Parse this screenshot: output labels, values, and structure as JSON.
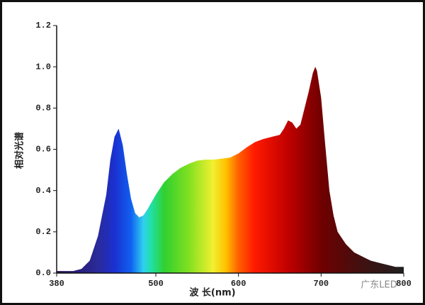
{
  "chart_data": {
    "type": "area",
    "x_label": "波 长(nm)",
    "y_label": "相对光谱",
    "watermark": "广东LED",
    "x": [
      380,
      400,
      410,
      420,
      430,
      440,
      445,
      450,
      455,
      460,
      465,
      470,
      475,
      480,
      485,
      490,
      500,
      510,
      520,
      530,
      540,
      550,
      560,
      570,
      580,
      590,
      600,
      610,
      620,
      630,
      640,
      650,
      655,
      660,
      665,
      670,
      675,
      680,
      685,
      690,
      693,
      695,
      700,
      705,
      710,
      715,
      720,
      730,
      740,
      750,
      760,
      770,
      780,
      790,
      800
    ],
    "values": [
      0.01,
      0.01,
      0.02,
      0.06,
      0.18,
      0.38,
      0.55,
      0.66,
      0.7,
      0.62,
      0.48,
      0.36,
      0.29,
      0.27,
      0.28,
      0.31,
      0.38,
      0.44,
      0.48,
      0.51,
      0.53,
      0.545,
      0.55,
      0.55,
      0.555,
      0.56,
      0.58,
      0.61,
      0.635,
      0.65,
      0.66,
      0.67,
      0.7,
      0.74,
      0.73,
      0.7,
      0.72,
      0.8,
      0.88,
      0.97,
      1.0,
      0.98,
      0.85,
      0.62,
      0.4,
      0.28,
      0.2,
      0.14,
      0.1,
      0.08,
      0.06,
      0.05,
      0.04,
      0.03,
      0.03
    ],
    "xlim": [
      380,
      800
    ],
    "ylim": [
      0,
      1.2
    ],
    "xticks": [
      380,
      500,
      600,
      700,
      800
    ],
    "yticks": [
      {
        "value": 0,
        "label": "0.0"
      },
      0.2,
      0.4,
      0.6,
      0.8,
      {
        "value": 1,
        "label": "1.0"
      },
      1.2
    ]
  }
}
